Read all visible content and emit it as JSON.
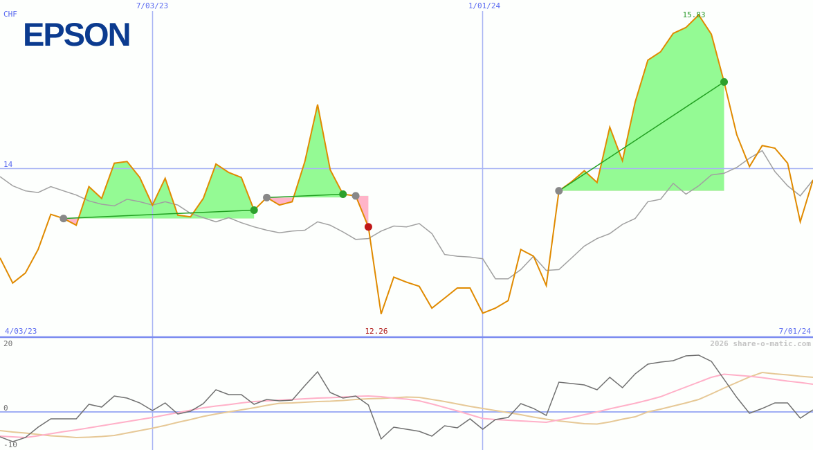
{
  "logo": "EPSON",
  "currency": "CHF",
  "watermark": "2026 share-o-matic.com",
  "colors": {
    "price": "#e08a00",
    "benchmark": "#a0a0a0",
    "grid": "#8c9cf0",
    "win_fill": "#94fa94",
    "loss_fill": "#ffb4c8",
    "win_marker": "#2ca02c",
    "loss_marker": "#c01818",
    "entry_marker": "#888888",
    "trade_line": "#22a022",
    "osc_main": "#707070",
    "osc_fast": "#ffb0c8",
    "osc_slow": "#e6c896",
    "label_blue": "#5a6af0",
    "max_label": "#2a9a2a",
    "min_label": "#b01818"
  },
  "chart_data": [
    {
      "type": "line",
      "title": "",
      "ylabel": "CHF",
      "x_tick_labels": [
        "4/03/23",
        "7/03/23",
        "1/01/24",
        "7/01/24"
      ],
      "y_tick_labels": [
        "14"
      ],
      "ylim": [
        12.26,
        15.83
      ],
      "annotations": {
        "max": "15.83",
        "min": "12.26"
      },
      "series": [
        {
          "role": "price",
          "values": [
            12.93,
            12.63,
            12.75,
            13.03,
            13.45,
            13.4,
            13.32,
            13.78,
            13.64,
            14.06,
            14.08,
            13.89,
            13.56,
            13.88,
            13.44,
            13.42,
            13.64,
            14.05,
            13.95,
            13.89,
            13.5,
            13.65,
            13.56,
            13.6,
            14.08,
            14.76,
            13.98,
            13.69,
            13.67,
            13.3,
            12.26,
            12.7,
            12.64,
            12.59,
            12.33,
            12.45,
            12.57,
            12.57,
            12.27,
            12.33,
            12.42,
            13.03,
            12.95,
            12.6,
            13.73,
            13.84,
            13.97,
            13.83,
            14.49,
            14.09,
            14.79,
            15.29,
            15.39,
            15.61,
            15.68,
            15.83,
            15.6,
            15.03,
            14.4,
            14.02,
            14.27,
            14.24,
            14.06,
            13.36,
            13.86
          ]
        },
        {
          "role": "benchmark",
          "values": [
            13.9,
            13.79,
            13.73,
            13.71,
            13.78,
            13.73,
            13.68,
            13.61,
            13.57,
            13.55,
            13.63,
            13.6,
            13.56,
            13.6,
            13.56,
            13.46,
            13.41,
            13.36,
            13.41,
            13.35,
            13.3,
            13.26,
            13.23,
            13.25,
            13.26,
            13.36,
            13.32,
            13.24,
            13.15,
            13.16,
            13.25,
            13.31,
            13.3,
            13.34,
            13.22,
            12.97,
            12.95,
            12.94,
            12.92,
            12.68,
            12.68,
            12.79,
            12.95,
            12.78,
            12.79,
            12.93,
            13.07,
            13.16,
            13.22,
            13.33,
            13.4,
            13.6,
            13.63,
            13.82,
            13.69,
            13.79,
            13.92,
            13.94,
            14.01,
            14.12,
            14.21,
            13.96,
            13.79,
            13.67,
            13.86
          ]
        }
      ],
      "trades": [
        {
          "entry": 5,
          "exit": 20,
          "result": "win"
        },
        {
          "entry": 21,
          "exit": 27,
          "result": "win"
        },
        {
          "entry": 28,
          "exit": 29,
          "result": "loss"
        },
        {
          "entry": 44,
          "exit": 57,
          "result": "win"
        }
      ]
    },
    {
      "type": "line",
      "title": "",
      "y_tick_labels": [
        "20",
        "0",
        "-10"
      ],
      "ylim": [
        -11,
        20
      ],
      "series": [
        {
          "role": "oscillator",
          "values": [
            -7.2,
            -8.6,
            -7.4,
            -4.4,
            -2,
            -2,
            -2,
            2.2,
            1.4,
            4.6,
            4,
            2.6,
            0.4,
            2.6,
            -0.6,
            0.2,
            2.4,
            6.4,
            5,
            5,
            2.2,
            3.6,
            3.2,
            3.4,
            7.6,
            11.6,
            5.6,
            4,
            4.6,
            2,
            -7.8,
            -4.4,
            -5,
            -5.6,
            -7,
            -4,
            -4.6,
            -2,
            -5,
            -2.2,
            -1.6,
            2.4,
            1,
            -1,
            8.6,
            8.2,
            7.8,
            6.4,
            10,
            7,
            11,
            13.8,
            14.4,
            14.8,
            16.2,
            16.4,
            14.6,
            9.4,
            4.2,
            -0.4,
            1,
            2.6,
            2.6,
            -1.8,
            0.6
          ]
        },
        {
          "role": "fast-average",
          "values": [
            -7,
            -7.2,
            -7.4,
            -6.9,
            -6.3,
            -5.7,
            -5.2,
            -4.6,
            -4,
            -3.4,
            -2.8,
            -2.2,
            -1.6,
            -0.9,
            -0.2,
            0.5,
            1.2,
            1.7,
            2.1,
            2.6,
            3,
            3.2,
            3.4,
            3.6,
            3.8,
            4,
            4.1,
            4.3,
            4.5,
            4.6,
            4.4,
            4,
            3.7,
            3.2,
            2.3,
            1.3,
            0.3,
            -0.8,
            -1.9,
            -2.2,
            -2.4,
            -2.6,
            -2.8,
            -3,
            -2.3,
            -1.6,
            -0.8,
            0,
            0.9,
            1.7,
            2.5,
            3.4,
            4.4,
            5.8,
            7.2,
            8.6,
            10,
            10.9,
            10.6,
            10.3,
            9.9,
            9.4,
            8.9,
            8.5,
            8
          ]
        },
        {
          "role": "slow-average",
          "values": [
            -5.4,
            -5.8,
            -6.1,
            -6.5,
            -6.9,
            -7.1,
            -7.4,
            -7.3,
            -7.1,
            -6.8,
            -6.1,
            -5.4,
            -4.7,
            -3.9,
            -3,
            -2.2,
            -1.3,
            -0.6,
            0,
            0.6,
            1.2,
            1.9,
            2.5,
            2.6,
            2.8,
            3,
            3.1,
            3.3,
            3.6,
            3.8,
            3.9,
            4.1,
            4.3,
            4.2,
            3.6,
            3,
            2.3,
            1.6,
            1,
            0.4,
            -0.2,
            -0.8,
            -1.5,
            -2.1,
            -2.6,
            -3,
            -3.4,
            -3.5,
            -2.9,
            -2.1,
            -1.4,
            0,
            0.8,
            1.7,
            2.6,
            3.6,
            5.2,
            6.9,
            8.5,
            10.1,
            11.4,
            11,
            10.7,
            10.3,
            10
          ]
        }
      ]
    }
  ]
}
